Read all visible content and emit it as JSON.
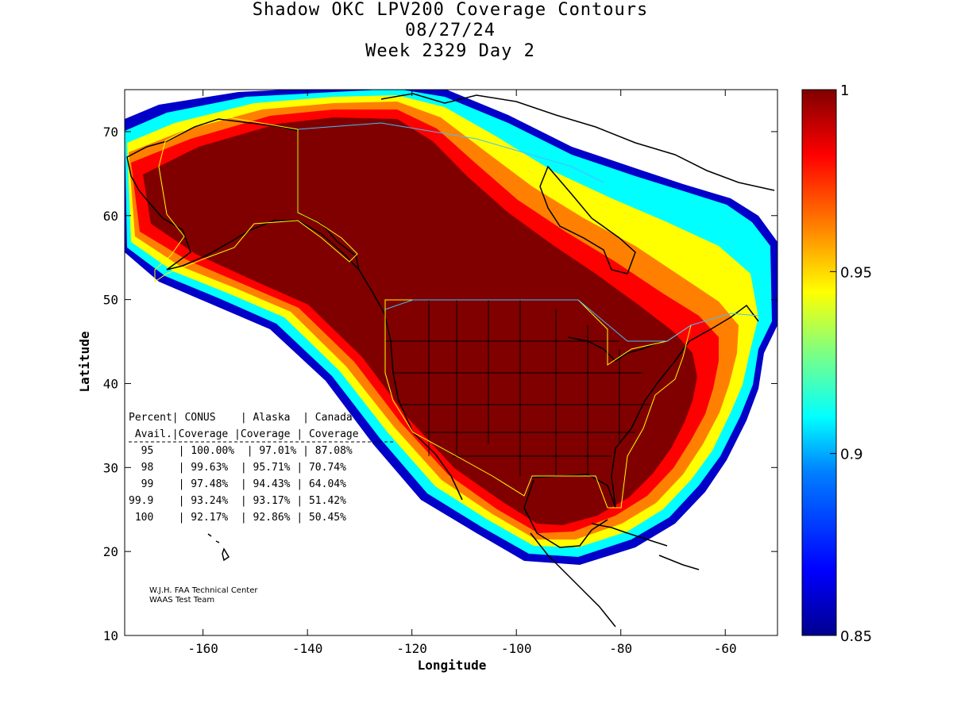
{
  "title": {
    "line1": "Shadow OKC LPV200 Coverage Contours",
    "line2": "08/27/24",
    "line3": "Week 2329 Day 2"
  },
  "axes": {
    "xlabel": "Longitude",
    "ylabel": "Latitude",
    "x_ticks": [
      -160,
      -140,
      -120,
      -100,
      -80,
      -60
    ],
    "x_tick_labels": [
      "-160",
      "-140",
      "-120",
      "-100",
      "-80",
      "-60"
    ],
    "y_ticks": [
      10,
      20,
      30,
      40,
      50,
      60,
      70
    ],
    "y_tick_labels": [
      "10",
      "20",
      "30",
      "40",
      "50",
      "60",
      "70"
    ],
    "xlim": [
      -175,
      -50
    ],
    "ylim": [
      10,
      75
    ]
  },
  "colorbar": {
    "ticks": [
      1,
      0.95,
      0.9,
      0.85
    ],
    "tick_labels": [
      "1",
      "0.95",
      "0.9",
      "0.85"
    ],
    "range": [
      0.85,
      1
    ],
    "colormap": [
      "#00008f",
      "#0000ff",
      "#0080ff",
      "#00ffff",
      "#80ff80",
      "#ffff00",
      "#ff8000",
      "#ff0000",
      "#800000"
    ]
  },
  "table": {
    "header1": "Percent| CONUS    | Alaska  | Canada",
    "header2": " Avail.|Coverage |Coverage | Coverage",
    "rows": [
      "  95    | 100.00%  | 97.01% | 87.08%",
      "  98    | 99.63%  | 95.71% | 70.74%",
      "  99    | 97.48%  | 94.43% | 64.04%",
      "99.9    | 93.24%  | 93.17% | 51.42%",
      " 100    | 92.17%  | 92.86% | 50.45%"
    ]
  },
  "credit": {
    "line1": "W.J.H. FAA Technical Center",
    "line2": "WAAS Test Team"
  }
}
